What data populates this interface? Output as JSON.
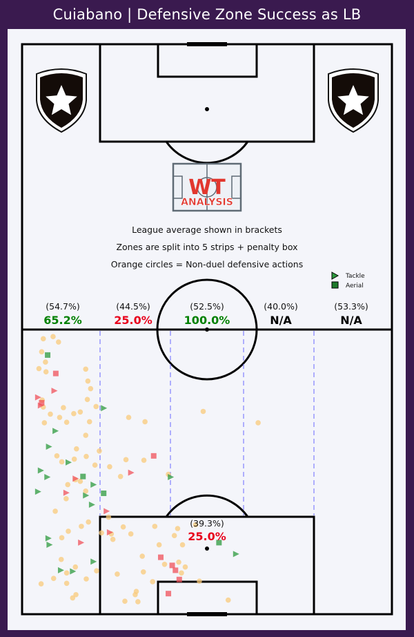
{
  "title": "Cuiabano | Defensive Zone Success as LB",
  "logo": {
    "top": "WT",
    "bottom": "ANALYSIS"
  },
  "notes": [
    "League average shown in brackets",
    "Zones are split into 5 strips + penalty box",
    "Orange circles = Non-duel defensive actions"
  ],
  "legend": {
    "tackle": "Tackle",
    "aerial": "Aerial",
    "placement": "top-right"
  },
  "colors": {
    "background": "#3a1a4f",
    "pitch": "#f4f5fa",
    "good": "#008000",
    "bad": "#e8001c",
    "neutral": "#000000",
    "non_duel": "#f9c97a",
    "duel_won": "#2e9a3e",
    "duel_lost": "#f0505a",
    "divider": "#8080ff"
  },
  "chart_data": {
    "type": "scatter",
    "zones": [
      {
        "name": "strip-1",
        "league_avg": "(54.7%)",
        "value": "65.2%",
        "status": "good"
      },
      {
        "name": "strip-2",
        "league_avg": "(44.5%)",
        "value": "25.0%",
        "status": "bad"
      },
      {
        "name": "strip-3",
        "league_avg": "(52.5%)",
        "value": "100.0%",
        "status": "good"
      },
      {
        "name": "strip-4",
        "league_avg": "(40.0%)",
        "value": "N/A",
        "status": "neutral"
      },
      {
        "name": "strip-5",
        "league_avg": "(53.3%)",
        "value": "N/A",
        "status": "neutral"
      },
      {
        "name": "penalty-box",
        "league_avg": "(39.3%)",
        "value": "25.0%",
        "status": "bad"
      }
    ],
    "axes": {
      "x_range": [
        0,
        68
      ],
      "y_range": [
        0,
        52.5
      ]
    },
    "non_duel_actions": [
      [
        3.9,
        50.8
      ],
      [
        5.7,
        51.2
      ],
      [
        6.7,
        50.2
      ],
      [
        3.6,
        48.4
      ],
      [
        4.3,
        46.5
      ],
      [
        3.1,
        45.3
      ],
      [
        4.4,
        44.7
      ],
      [
        11.7,
        45.2
      ],
      [
        12.1,
        43.0
      ],
      [
        12.6,
        41.6
      ],
      [
        12.0,
        39.6
      ],
      [
        3.7,
        39.5
      ],
      [
        3.9,
        38.2
      ],
      [
        4.1,
        35.3
      ],
      [
        5.2,
        36.9
      ],
      [
        6.9,
        36.3
      ],
      [
        7.6,
        38.1
      ],
      [
        9.5,
        37.0
      ],
      [
        8.2,
        35.4
      ],
      [
        13.6,
        38.3
      ],
      [
        10.7,
        37.3
      ],
      [
        12.4,
        35.5
      ],
      [
        11.7,
        33.0
      ],
      [
        19.6,
        36.3
      ],
      [
        22.6,
        35.5
      ],
      [
        33.3,
        37.4
      ],
      [
        43.4,
        35.3
      ],
      [
        6.4,
        29.2
      ],
      [
        7.3,
        28.1
      ],
      [
        9.6,
        28.6
      ],
      [
        10.0,
        30.5
      ],
      [
        11.8,
        29.1
      ],
      [
        14.2,
        30.1
      ],
      [
        13.4,
        27.5
      ],
      [
        16.1,
        27.2
      ],
      [
        19.1,
        28.5
      ],
      [
        18.1,
        25.4
      ],
      [
        22.4,
        28.4
      ],
      [
        26.9,
        25.8
      ],
      [
        8.4,
        23.9
      ],
      [
        9.8,
        24.8
      ],
      [
        10.7,
        24.5
      ],
      [
        11.7,
        22.7
      ],
      [
        8.1,
        21.3
      ],
      [
        6.1,
        19.0
      ],
      [
        12.2,
        17.0
      ],
      [
        15.9,
        17.9
      ],
      [
        10.9,
        16.2
      ],
      [
        8.5,
        15.3
      ],
      [
        7.3,
        14.1
      ],
      [
        14.6,
        15.0
      ],
      [
        16.7,
        13.8
      ],
      [
        18.6,
        16.1
      ],
      [
        16.4,
        14.8
      ],
      [
        24.4,
        16.2
      ],
      [
        28.6,
        15.8
      ],
      [
        28.0,
        14.5
      ],
      [
        31.9,
        16.5
      ],
      [
        29.5,
        12.8
      ],
      [
        20.0,
        14.8
      ],
      [
        22.1,
        10.7
      ],
      [
        28.8,
        9.6
      ],
      [
        30.0,
        8.7
      ],
      [
        29.3,
        7.6
      ],
      [
        25.2,
        12.8
      ],
      [
        32.6,
        6.1
      ],
      [
        26.2,
        9.2
      ],
      [
        7.2,
        10.1
      ],
      [
        8.2,
        7.6
      ],
      [
        9.8,
        8.7
      ],
      [
        13.7,
        8.0
      ],
      [
        11.8,
        6.5
      ],
      [
        8.2,
        5.7
      ],
      [
        9.9,
        3.6
      ],
      [
        5.8,
        6.6
      ],
      [
        3.5,
        5.6
      ],
      [
        9.3,
        3.0
      ],
      [
        21.0,
        4.2
      ],
      [
        17.5,
        7.4
      ],
      [
        18.9,
        2.4
      ],
      [
        20.8,
        3.6
      ],
      [
        22.3,
        7.8
      ],
      [
        24.0,
        6.0
      ],
      [
        37.9,
        2.6
      ],
      [
        21.3,
        2.3
      ]
    ],
    "tackles": [
      {
        "x": 15.0,
        "y": 38.0,
        "won": true
      },
      {
        "x": 6.1,
        "y": 33.8,
        "won": true
      },
      {
        "x": 4.9,
        "y": 30.9,
        "won": true
      },
      {
        "x": 3.4,
        "y": 26.5,
        "won": true
      },
      {
        "x": 8.5,
        "y": 28.0,
        "won": true
      },
      {
        "x": 13.1,
        "y": 23.9,
        "won": true
      },
      {
        "x": 11.7,
        "y": 21.9,
        "won": true
      },
      {
        "x": 2.9,
        "y": 22.6,
        "won": true
      },
      {
        "x": 4.6,
        "y": 25.3,
        "won": true
      },
      {
        "x": 12.8,
        "y": 20.2,
        "won": true
      },
      {
        "x": 4.8,
        "y": 14.0,
        "won": true
      },
      {
        "x": 5.0,
        "y": 12.8,
        "won": true
      },
      {
        "x": 7.1,
        "y": 8.1,
        "won": true
      },
      {
        "x": 9.3,
        "y": 7.9,
        "won": true
      },
      {
        "x": 13.1,
        "y": 9.7,
        "won": true
      },
      {
        "x": 27.3,
        "y": 25.3,
        "won": true
      },
      {
        "x": 39.3,
        "y": 11.1,
        "won": true
      },
      {
        "x": 2.9,
        "y": 40.0,
        "won": false
      },
      {
        "x": 3.4,
        "y": 38.5,
        "won": false
      },
      {
        "x": 5.9,
        "y": 41.2,
        "won": false
      },
      {
        "x": 20.0,
        "y": 26.1,
        "won": false
      },
      {
        "x": 9.8,
        "y": 25.0,
        "won": false
      },
      {
        "x": 8.1,
        "y": 22.4,
        "won": false
      },
      {
        "x": 15.5,
        "y": 19.0,
        "won": false
      },
      {
        "x": 16.1,
        "y": 15.1,
        "won": false
      },
      {
        "x": 10.8,
        "y": 13.2,
        "won": false
      }
    ],
    "aerials": [
      {
        "x": 4.7,
        "y": 47.8,
        "won": true
      },
      {
        "x": 11.2,
        "y": 25.4,
        "won": true
      },
      {
        "x": 15.0,
        "y": 22.3,
        "won": true
      },
      {
        "x": 36.2,
        "y": 13.2,
        "won": true
      },
      {
        "x": 6.2,
        "y": 44.4,
        "won": false
      },
      {
        "x": 3.6,
        "y": 39.0,
        "won": false
      },
      {
        "x": 24.2,
        "y": 29.2,
        "won": false
      },
      {
        "x": 25.5,
        "y": 10.5,
        "won": false
      },
      {
        "x": 27.6,
        "y": 9.0,
        "won": false
      },
      {
        "x": 28.2,
        "y": 8.1,
        "won": false
      },
      {
        "x": 28.9,
        "y": 6.4,
        "won": false
      },
      {
        "x": 26.9,
        "y": 3.8,
        "won": false
      }
    ]
  }
}
